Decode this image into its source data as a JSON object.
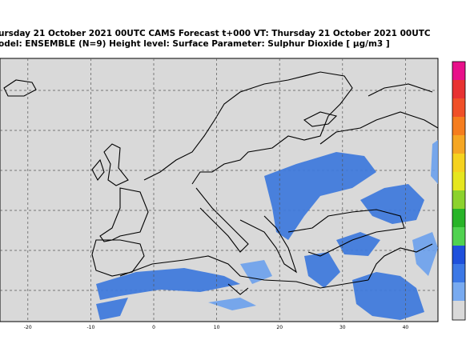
{
  "header": {
    "line1": "ursday 21 October 2021 00UTC CAMS Forecast t+000 VT: Thursday 21 October 2021 00UTC",
    "line2": "odel: ENSEMBLE (N=9) Height level: Surface  Parameter: Sulphur Dioxide [ µg/m3 ]"
  },
  "map": {
    "xticks": [
      -20,
      -10,
      0,
      10,
      20,
      30,
      40
    ]
  }
}
